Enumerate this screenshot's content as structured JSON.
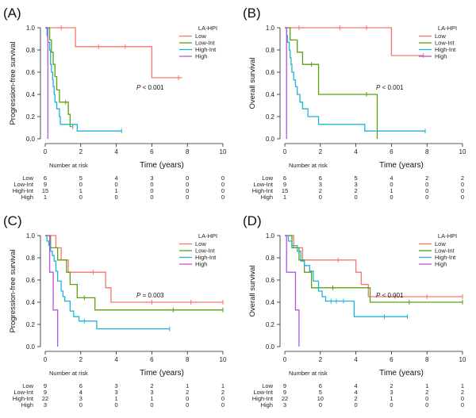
{
  "figure": {
    "x_axis_label": "Time (years)",
    "risk_table_label": "Number at risk",
    "legend_title": "LA-HPI",
    "group_labels": [
      "Low",
      "Low-Int",
      "High-Int",
      "High"
    ],
    "colors": {
      "Low": "#f8766d",
      "Low-Int": "#5aa012",
      "High-Int": "#1fb4d6",
      "High": "#b455e0"
    }
  },
  "chart_data": [
    {
      "type": "line",
      "panel_label": "(A)",
      "title": "",
      "xlabel": "Time (years)",
      "ylabel": "Progression-free survival",
      "xlim": [
        0,
        10
      ],
      "ylim": [
        0,
        1
      ],
      "x_ticks": [
        0,
        2,
        4,
        6,
        8,
        10
      ],
      "y_ticks": [
        0.0,
        0.2,
        0.4,
        0.6,
        0.8,
        1.0
      ],
      "p_value": "P < 0.001",
      "legend_position": "top-right",
      "series": [
        {
          "name": "Low",
          "steps": [
            [
              0,
              1.0
            ],
            [
              1.7,
              0.83
            ],
            [
              6.0,
              0.55
            ],
            [
              7.7,
              0.55
            ]
          ],
          "censors": [
            [
              0.9,
              1.0
            ],
            [
              3.0,
              0.83
            ],
            [
              4.5,
              0.83
            ],
            [
              7.5,
              0.55
            ]
          ]
        },
        {
          "name": "Low-Int",
          "steps": [
            [
              0,
              1.0
            ],
            [
              0.25,
              0.89
            ],
            [
              0.35,
              0.78
            ],
            [
              0.45,
              0.67
            ],
            [
              0.55,
              0.56
            ],
            [
              0.65,
              0.44
            ],
            [
              0.8,
              0.33
            ],
            [
              1.3,
              0.22
            ],
            [
              1.4,
              0.11
            ],
            [
              1.5,
              0.11
            ]
          ],
          "censors": [
            [
              1.15,
              0.33
            ],
            [
              1.55,
              0.11
            ]
          ]
        },
        {
          "name": "High-Int",
          "steps": [
            [
              0,
              1.0
            ],
            [
              0.1,
              0.93
            ],
            [
              0.15,
              0.87
            ],
            [
              0.25,
              0.8
            ],
            [
              0.3,
              0.67
            ],
            [
              0.35,
              0.6
            ],
            [
              0.42,
              0.53
            ],
            [
              0.45,
              0.47
            ],
            [
              0.5,
              0.4
            ],
            [
              0.55,
              0.33
            ],
            [
              0.65,
              0.27
            ],
            [
              0.8,
              0.2
            ],
            [
              0.85,
              0.13
            ],
            [
              1.8,
              0.07
            ],
            [
              4.3,
              0.07
            ]
          ],
          "censors": [
            [
              4.3,
              0.07
            ]
          ]
        },
        {
          "name": "High",
          "steps": [
            [
              0,
              1.0
            ],
            [
              0.15,
              0.0
            ]
          ],
          "censors": []
        }
      ],
      "risk_table": {
        "times": [
          0,
          2,
          4,
          6,
          8,
          10
        ],
        "rows": [
          {
            "group": "Low",
            "values": [
              6,
              5,
              4,
              3,
              0,
              0
            ]
          },
          {
            "group": "Low-Int",
            "values": [
              9,
              0,
              0,
              0,
              0,
              0
            ]
          },
          {
            "group": "High-Int",
            "values": [
              15,
              1,
              1,
              0,
              0,
              0
            ]
          },
          {
            "group": "High",
            "values": [
              1,
              0,
              0,
              0,
              0,
              0
            ]
          }
        ]
      }
    },
    {
      "type": "line",
      "panel_label": "(B)",
      "title": "",
      "xlabel": "Time (years)",
      "ylabel": "Overall survival",
      "xlim": [
        0,
        10
      ],
      "ylim": [
        0,
        1
      ],
      "x_ticks": [
        0,
        2,
        4,
        6,
        8,
        10
      ],
      "y_ticks": [
        0.0,
        0.2,
        0.4,
        0.6,
        0.8,
        1.0
      ],
      "p_value": "P < 0.001",
      "legend_position": "top-right",
      "series": [
        {
          "name": "Low",
          "steps": [
            [
              0,
              1.0
            ],
            [
              6.0,
              0.75
            ],
            [
              7.8,
              0.75
            ]
          ],
          "censors": [
            [
              0.8,
              1.0
            ],
            [
              3.1,
              1.0
            ],
            [
              4.6,
              1.0
            ],
            [
              7.8,
              0.75
            ]
          ]
        },
        {
          "name": "Low-Int",
          "steps": [
            [
              0,
              1.0
            ],
            [
              0.3,
              0.89
            ],
            [
              0.7,
              0.78
            ],
            [
              1.0,
              0.67
            ],
            [
              1.9,
              0.4
            ],
            [
              5.2,
              0.0
            ]
          ],
          "censors": [
            [
              1.5,
              0.67
            ],
            [
              4.6,
              0.4
            ]
          ]
        },
        {
          "name": "High-Int",
          "steps": [
            [
              0,
              1.0
            ],
            [
              0.1,
              0.93
            ],
            [
              0.15,
              0.87
            ],
            [
              0.25,
              0.8
            ],
            [
              0.3,
              0.73
            ],
            [
              0.35,
              0.67
            ],
            [
              0.4,
              0.6
            ],
            [
              0.5,
              0.53
            ],
            [
              0.6,
              0.47
            ],
            [
              0.7,
              0.4
            ],
            [
              0.85,
              0.33
            ],
            [
              1.0,
              0.27
            ],
            [
              1.3,
              0.2
            ],
            [
              1.9,
              0.13
            ],
            [
              4.5,
              0.07
            ],
            [
              7.9,
              0.07
            ]
          ],
          "censors": [
            [
              7.9,
              0.07
            ]
          ]
        },
        {
          "name": "High",
          "steps": [
            [
              0,
              1.0
            ],
            [
              0.1,
              0.0
            ]
          ],
          "censors": []
        }
      ],
      "risk_table": {
        "times": [
          0,
          2,
          4,
          6,
          8,
          10
        ],
        "rows": [
          {
            "group": "Low",
            "values": [
              6,
              6,
              5,
              4,
              2,
              2
            ]
          },
          {
            "group": "Low-Int",
            "values": [
              9,
              3,
              3,
              0,
              0,
              0
            ]
          },
          {
            "group": "High-Int",
            "values": [
              15,
              2,
              2,
              1,
              0,
              0
            ]
          },
          {
            "group": "High",
            "values": [
              1,
              0,
              0,
              0,
              0,
              0
            ]
          }
        ]
      }
    },
    {
      "type": "line",
      "panel_label": "(C)",
      "title": "",
      "xlabel": "Time (years)",
      "ylabel": "Progression-free survival",
      "xlim": [
        0,
        10
      ],
      "ylim": [
        0,
        1
      ],
      "x_ticks": [
        0,
        2,
        4,
        6,
        8,
        10
      ],
      "y_ticks": [
        0.0,
        0.2,
        0.4,
        0.6,
        0.8,
        1.0
      ],
      "p_value": "P = 0.003",
      "legend_position": "top-right",
      "series": [
        {
          "name": "Low",
          "steps": [
            [
              0,
              1.0
            ],
            [
              0.6,
              0.89
            ],
            [
              0.9,
              0.78
            ],
            [
              1.3,
              0.67
            ],
            [
              3.4,
              0.53
            ],
            [
              3.7,
              0.4
            ],
            [
              10.0,
              0.4
            ]
          ],
          "censors": [
            [
              2.7,
              0.67
            ],
            [
              6.0,
              0.4
            ],
            [
              8.2,
              0.4
            ],
            [
              10.0,
              0.4
            ]
          ]
        },
        {
          "name": "Low-Int",
          "steps": [
            [
              0,
              1.0
            ],
            [
              0.3,
              0.89
            ],
            [
              0.7,
              0.78
            ],
            [
              1.2,
              0.67
            ],
            [
              1.4,
              0.56
            ],
            [
              1.8,
              0.44
            ],
            [
              2.8,
              0.33
            ],
            [
              10.0,
              0.33
            ]
          ],
          "censors": [
            [
              2.2,
              0.44
            ],
            [
              7.2,
              0.33
            ],
            [
              10.0,
              0.33
            ]
          ]
        },
        {
          "name": "High-Int",
          "steps": [
            [
              0,
              1.0
            ],
            [
              0.1,
              0.95
            ],
            [
              0.2,
              0.91
            ],
            [
              0.3,
              0.86
            ],
            [
              0.4,
              0.82
            ],
            [
              0.5,
              0.77
            ],
            [
              0.6,
              0.68
            ],
            [
              0.7,
              0.59
            ],
            [
              0.9,
              0.5
            ],
            [
              1.0,
              0.45
            ],
            [
              1.1,
              0.41
            ],
            [
              1.4,
              0.32
            ],
            [
              1.6,
              0.27
            ],
            [
              1.9,
              0.23
            ],
            [
              2.9,
              0.16
            ],
            [
              7.0,
              0.16
            ]
          ],
          "censors": [
            [
              2.2,
              0.23
            ],
            [
              7.0,
              0.16
            ]
          ]
        },
        {
          "name": "High",
          "steps": [
            [
              0,
              1.0
            ],
            [
              0.25,
              0.67
            ],
            [
              0.45,
              0.33
            ],
            [
              0.7,
              0.0
            ]
          ],
          "censors": []
        }
      ],
      "risk_table": {
        "times": [
          0,
          2,
          4,
          6,
          8,
          10
        ],
        "rows": [
          {
            "group": "Low",
            "values": [
              9,
              6,
              3,
              2,
              1,
              1
            ]
          },
          {
            "group": "Low-Int",
            "values": [
              9,
              4,
              3,
              3,
              2,
              2
            ]
          },
          {
            "group": "High-Int",
            "values": [
              22,
              3,
              1,
              1,
              0,
              0
            ]
          },
          {
            "group": "High",
            "values": [
              3,
              0,
              0,
              0,
              0,
              0
            ]
          }
        ]
      }
    },
    {
      "type": "line",
      "panel_label": "(D)",
      "title": "",
      "xlabel": "Time (years)",
      "ylabel": "Overall survival",
      "xlim": [
        0,
        10
      ],
      "ylim": [
        0,
        1
      ],
      "x_ticks": [
        0,
        2,
        4,
        6,
        8,
        10
      ],
      "y_ticks": [
        0.0,
        0.2,
        0.4,
        0.6,
        0.8,
        1.0
      ],
      "p_value": "P < 0.001",
      "legend_position": "top-right",
      "series": [
        {
          "name": "Low",
          "steps": [
            [
              0,
              1.0
            ],
            [
              0.5,
              0.89
            ],
            [
              1.0,
              0.78
            ],
            [
              1.3,
              0.78
            ],
            [
              4.0,
              0.67
            ],
            [
              4.3,
              0.56
            ],
            [
              4.7,
              0.45
            ],
            [
              10.0,
              0.45
            ]
          ],
          "censors": [
            [
              3.0,
              0.78
            ],
            [
              6.2,
              0.45
            ],
            [
              8.0,
              0.45
            ],
            [
              10.0,
              0.45
            ]
          ]
        },
        {
          "name": "Low-Int",
          "steps": [
            [
              0,
              1.0
            ],
            [
              0.4,
              0.89
            ],
            [
              0.8,
              0.78
            ],
            [
              1.1,
              0.67
            ],
            [
              1.5,
              0.53
            ],
            [
              4.8,
              0.4
            ],
            [
              10.0,
              0.4
            ]
          ],
          "censors": [
            [
              2.7,
              0.53
            ],
            [
              7.0,
              0.4
            ],
            [
              10.0,
              0.4
            ]
          ]
        },
        {
          "name": "High-Int",
          "steps": [
            [
              0,
              1.0
            ],
            [
              0.2,
              0.95
            ],
            [
              0.4,
              0.91
            ],
            [
              0.7,
              0.86
            ],
            [
              0.9,
              0.77
            ],
            [
              1.1,
              0.73
            ],
            [
              1.4,
              0.68
            ],
            [
              1.6,
              0.59
            ],
            [
              1.9,
              0.5
            ],
            [
              2.1,
              0.45
            ],
            [
              2.3,
              0.41
            ],
            [
              3.9,
              0.27
            ],
            [
              6.9,
              0.27
            ]
          ],
          "censors": [
            [
              2.6,
              0.41
            ],
            [
              2.9,
              0.41
            ],
            [
              3.3,
              0.41
            ],
            [
              5.6,
              0.27
            ],
            [
              6.9,
              0.27
            ]
          ]
        },
        {
          "name": "High",
          "steps": [
            [
              0,
              1.0
            ],
            [
              0.1,
              0.67
            ],
            [
              0.6,
              0.33
            ],
            [
              0.8,
              0.0
            ]
          ],
          "censors": []
        }
      ],
      "risk_table": {
        "times": [
          0,
          2,
          4,
          6,
          8,
          10
        ],
        "rows": [
          {
            "group": "Low",
            "values": [
              9,
              6,
              4,
              2,
              1,
              1
            ]
          },
          {
            "group": "Low-Int",
            "values": [
              9,
              5,
              4,
              3,
              2,
              2
            ]
          },
          {
            "group": "High-Int",
            "values": [
              22,
              10,
              2,
              1,
              0,
              0
            ]
          },
          {
            "group": "High",
            "values": [
              3,
              0,
              0,
              0,
              0,
              0
            ]
          }
        ]
      }
    }
  ]
}
